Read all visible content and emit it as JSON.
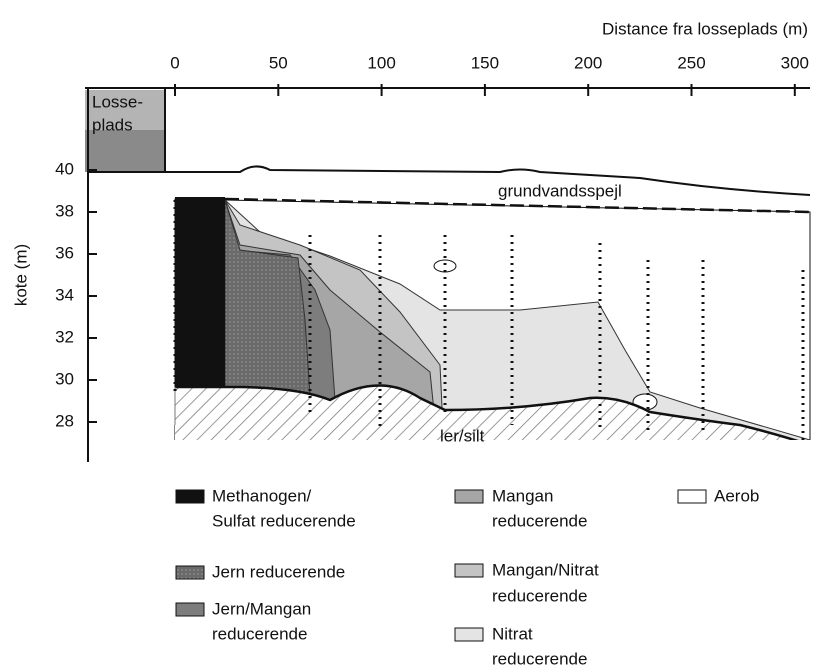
{
  "x_axis": {
    "title": "Distance fra losseplads (m)",
    "ticks": [
      0,
      50,
      100,
      150,
      200,
      250,
      300
    ]
  },
  "y_axis": {
    "title": "kote (m)",
    "ticks": [
      40,
      38,
      36,
      34,
      32,
      30,
      28
    ]
  },
  "labels": {
    "landfill": [
      "Losse-",
      "plads"
    ],
    "groundwater": "grundvandsspejl",
    "clay": "ler/silt"
  },
  "legend": [
    {
      "label": [
        "Methanogen/",
        "Sulfat reducerende"
      ]
    },
    {
      "label": [
        "Jern reducerende"
      ]
    },
    {
      "label": [
        "Jern/Mangan",
        "reducerende"
      ]
    },
    {
      "label": [
        "Mangan",
        "reducerende"
      ]
    },
    {
      "label": [
        "Mangan/Nitrat",
        "reducerende"
      ]
    },
    {
      "label": [
        "Nitrat",
        "reducerende"
      ]
    },
    {
      "label": [
        "Aerob"
      ]
    }
  ]
}
